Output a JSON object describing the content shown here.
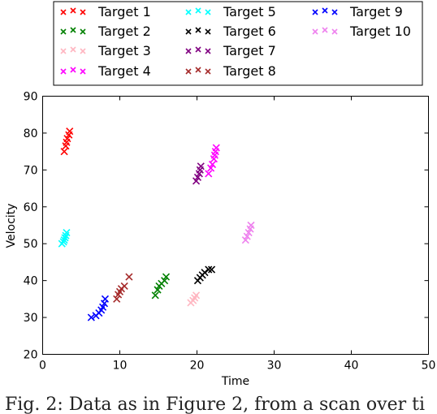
{
  "caption": "Fig. 2: Data as in Figure 2, from a scan over ti",
  "chart_data": {
    "type": "scatter",
    "xlabel": "Time",
    "ylabel": "Velocity",
    "xlim": [
      0,
      50
    ],
    "ylim": [
      20,
      90
    ],
    "xticks": [
      0,
      10,
      20,
      30,
      40,
      50
    ],
    "yticks": [
      20,
      30,
      40,
      50,
      60,
      70,
      80,
      90
    ],
    "marker": "x",
    "grid": false,
    "legend_position": "top",
    "legend_columns": 3,
    "series": [
      {
        "name": "Target 1",
        "color": "#ff0000",
        "points": [
          [
            2.8,
            75
          ],
          [
            3.0,
            76.5
          ],
          [
            3.1,
            77.5
          ],
          [
            3.2,
            78.5
          ],
          [
            3.4,
            79.5
          ],
          [
            3.5,
            80.5
          ]
        ]
      },
      {
        "name": "Target 2",
        "color": "#008000",
        "points": [
          [
            14.6,
            36
          ],
          [
            14.9,
            37.5
          ],
          [
            15.1,
            38.5
          ],
          [
            15.4,
            39.2
          ],
          [
            15.8,
            40
          ],
          [
            16.0,
            41
          ]
        ]
      },
      {
        "name": "Target 3",
        "color": "#ffb6c1",
        "points": [
          [
            19.2,
            34
          ],
          [
            19.5,
            34.6
          ],
          [
            19.7,
            35.3
          ],
          [
            19.9,
            36
          ]
        ]
      },
      {
        "name": "Target 4",
        "color": "#ff00ff",
        "points": [
          [
            21.5,
            69
          ],
          [
            21.8,
            70.5
          ],
          [
            22.0,
            71.5
          ],
          [
            22.2,
            73
          ],
          [
            22.3,
            74
          ],
          [
            22.4,
            75
          ],
          [
            22.5,
            76
          ]
        ]
      },
      {
        "name": "Target 5",
        "color": "#00ffff",
        "points": [
          [
            2.5,
            50
          ],
          [
            2.7,
            50.5
          ],
          [
            2.8,
            51
          ],
          [
            2.9,
            51.6
          ],
          [
            3.0,
            52.2
          ],
          [
            3.1,
            53
          ]
        ]
      },
      {
        "name": "Target 6",
        "color": "#000000",
        "points": [
          [
            20.1,
            40
          ],
          [
            20.4,
            40.8
          ],
          [
            20.7,
            41.5
          ],
          [
            21.0,
            42.2
          ],
          [
            21.5,
            43
          ],
          [
            21.9,
            43
          ]
        ]
      },
      {
        "name": "Target 7",
        "color": "#800080",
        "points": [
          [
            19.9,
            67
          ],
          [
            20.1,
            68
          ],
          [
            20.3,
            69
          ],
          [
            20.4,
            70
          ],
          [
            20.5,
            71
          ]
        ]
      },
      {
        "name": "Target 8",
        "color": "#a52a2a",
        "points": [
          [
            9.6,
            35
          ],
          [
            9.8,
            36.2
          ],
          [
            10.0,
            37
          ],
          [
            10.2,
            37.8
          ],
          [
            10.6,
            38.5
          ],
          [
            11.2,
            41
          ]
        ]
      },
      {
        "name": "Target 9",
        "color": "#0000ff",
        "points": [
          [
            6.3,
            30
          ],
          [
            6.9,
            30.5
          ],
          [
            7.3,
            31.2
          ],
          [
            7.6,
            32
          ],
          [
            7.8,
            32.8
          ],
          [
            8.0,
            33.8
          ],
          [
            8.1,
            35
          ]
        ]
      },
      {
        "name": "Target 10",
        "color": "#ee82ee",
        "points": [
          [
            26.3,
            51
          ],
          [
            26.5,
            52
          ],
          [
            26.7,
            53
          ],
          [
            26.9,
            54
          ],
          [
            27.0,
            55
          ]
        ]
      }
    ]
  }
}
